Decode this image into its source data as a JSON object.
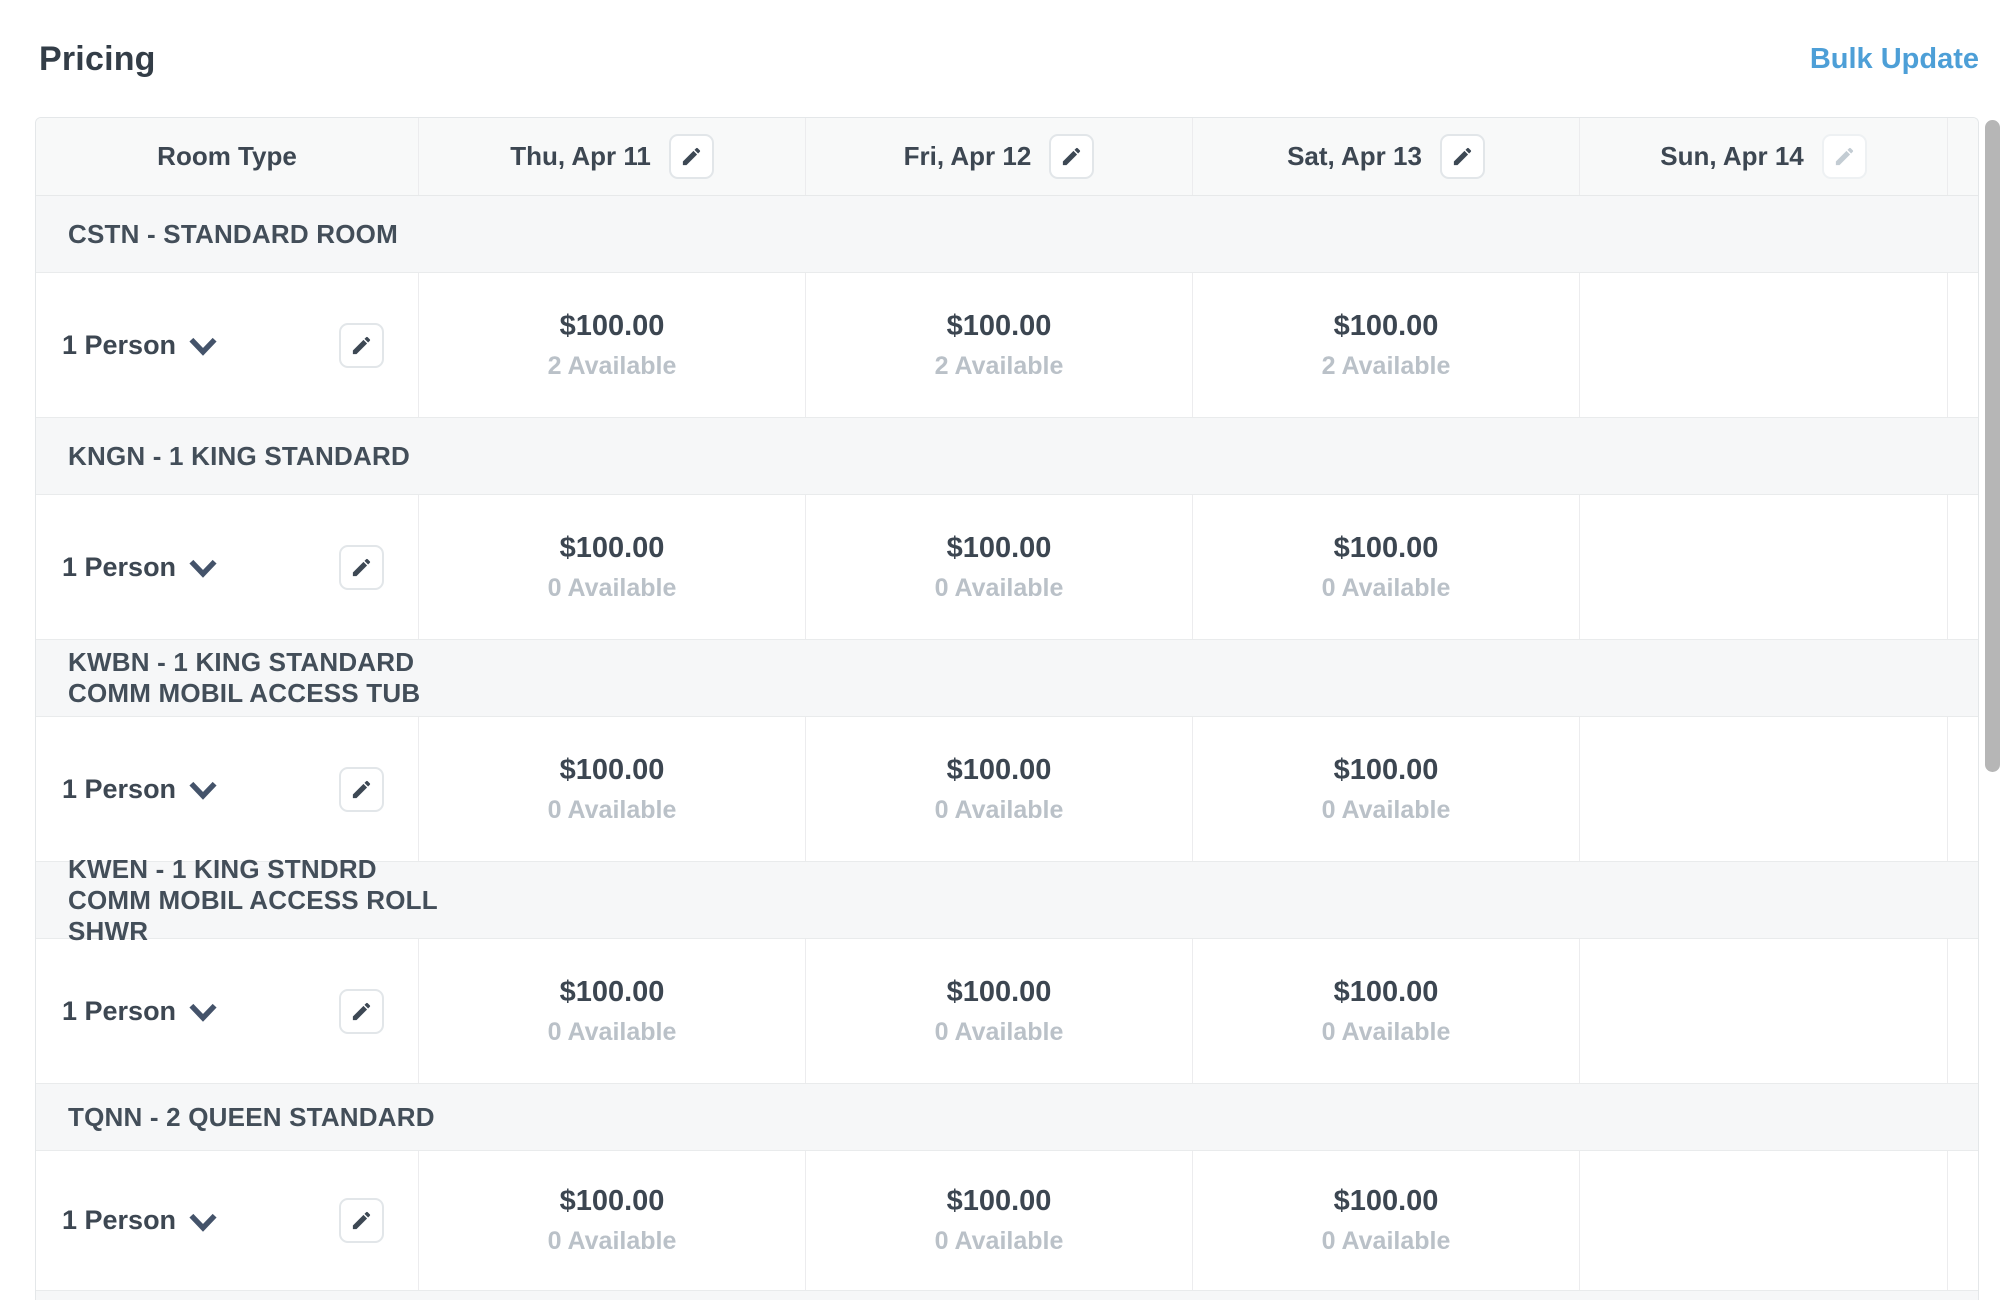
{
  "page": {
    "title": "Pricing",
    "bulk_update_label": "Bulk Update"
  },
  "table": {
    "columns": [
      {
        "label": "Room Type",
        "edit": "none"
      },
      {
        "label": "Thu, Apr 11",
        "edit": "enabled"
      },
      {
        "label": "Fri, Apr 12",
        "edit": "enabled"
      },
      {
        "label": "Sat, Apr 13",
        "edit": "enabled"
      },
      {
        "label": "Sun, Apr 14",
        "edit": "disabled"
      }
    ],
    "occupancy_label": "1 Person",
    "groups": [
      {
        "name": "CSTN - STANDARD ROOM",
        "days": [
          {
            "price": "$100.00",
            "available": "2 Available"
          },
          {
            "price": "$100.00",
            "available": "2 Available"
          },
          {
            "price": "$100.00",
            "available": "2 Available"
          },
          {
            "price": "",
            "available": ""
          }
        ]
      },
      {
        "name": "KNGN - 1 KING STANDARD",
        "days": [
          {
            "price": "$100.00",
            "available": "0 Available"
          },
          {
            "price": "$100.00",
            "available": "0 Available"
          },
          {
            "price": "$100.00",
            "available": "0 Available"
          },
          {
            "price": "",
            "available": ""
          }
        ]
      },
      {
        "name": "KWBN - 1 KING STANDARD COMM MOBIL ACCESS TUB",
        "days": [
          {
            "price": "$100.00",
            "available": "0 Available"
          },
          {
            "price": "$100.00",
            "available": "0 Available"
          },
          {
            "price": "$100.00",
            "available": "0 Available"
          },
          {
            "price": "",
            "available": ""
          }
        ]
      },
      {
        "name": "KWEN - 1 KING STNDRD COMM MOBIL ACCESS ROLL SHWR",
        "days": [
          {
            "price": "$100.00",
            "available": "0 Available"
          },
          {
            "price": "$100.00",
            "available": "0 Available"
          },
          {
            "price": "$100.00",
            "available": "0 Available"
          },
          {
            "price": "",
            "available": ""
          }
        ]
      },
      {
        "name": "TQNN - 2 QUEEN STANDARD",
        "days": [
          {
            "price": "$100.00",
            "available": "0 Available"
          },
          {
            "price": "$100.00",
            "available": "0 Available"
          },
          {
            "price": "$100.00",
            "available": "0 Available"
          },
          {
            "price": "",
            "available": ""
          }
        ]
      }
    ]
  },
  "colors": {
    "accent_blue": "#4d9fd7",
    "text_dark": "#3d4752",
    "text_muted": "#bac1c8",
    "alt_row_bg": "#f6f7f8",
    "border": "#e9ebec",
    "scrollbar_thumb": "#b6b6b6"
  },
  "icons": {
    "edit": "pencil-icon",
    "occupancy_expand": "chevron-down-icon"
  }
}
